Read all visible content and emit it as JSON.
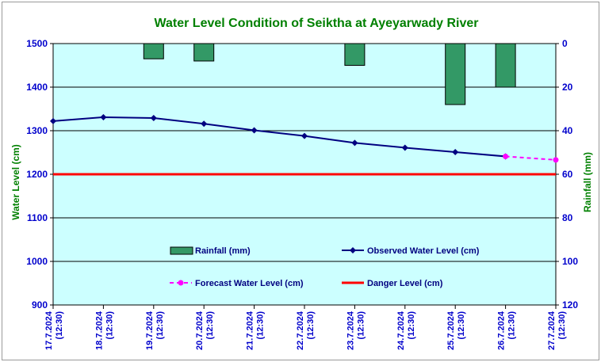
{
  "chart_data": {
    "type": "bar+line",
    "title": "Water Level Condition of Seiktha at Ayeyarwady River",
    "ylabel_left": "Water Level (cm)",
    "ylabel_right": "Rainfall (mm)",
    "ylim_left": [
      900,
      1500
    ],
    "ylim_right": [
      0,
      120
    ],
    "right_axis_inverted": true,
    "yticks_left": [
      "900",
      "1000",
      "1100",
      "1200",
      "1300",
      "1400",
      "1500"
    ],
    "yticks_right": [
      "0",
      "20",
      "40",
      "60",
      "80",
      "100",
      "120"
    ],
    "grid": true,
    "plot_background": "#ccffff",
    "categories": [
      "17.7.2024 (12:30)",
      "18.7.2024 (12:30)",
      "19.7.2024 (12:30)",
      "20.7.2024 (12:30)",
      "21.7.2024 (12:30)",
      "22.7.2024 (12:30)",
      "23.7.2024 (12:30)",
      "24.7.2024 (12:30)",
      "25.7.2024 (12:30)",
      "26.7.2024 (12:30)",
      "27.7.2024 (12:30)"
    ],
    "rainfall": {
      "name": "Rainfall (mm)",
      "color": "#339966",
      "values": [
        0,
        0,
        7,
        8,
        0,
        0,
        10,
        0,
        28,
        20,
        0
      ]
    },
    "observed": {
      "name": "Observed Water Level (cm)",
      "color": "#000080",
      "values": [
        1322,
        1331,
        1329,
        1316,
        1301,
        1288,
        1272,
        1261,
        1251,
        1241,
        null
      ]
    },
    "forecast": {
      "name": "Forecast Water Level (cm)",
      "color": "#ff00ff",
      "values": [
        null,
        null,
        null,
        null,
        null,
        null,
        null,
        null,
        null,
        1241,
        1233
      ]
    },
    "danger": {
      "name": "Danger Level (cm)",
      "color": "#ff0000",
      "value": 1200
    },
    "legend_placement": "inside-bottom"
  }
}
